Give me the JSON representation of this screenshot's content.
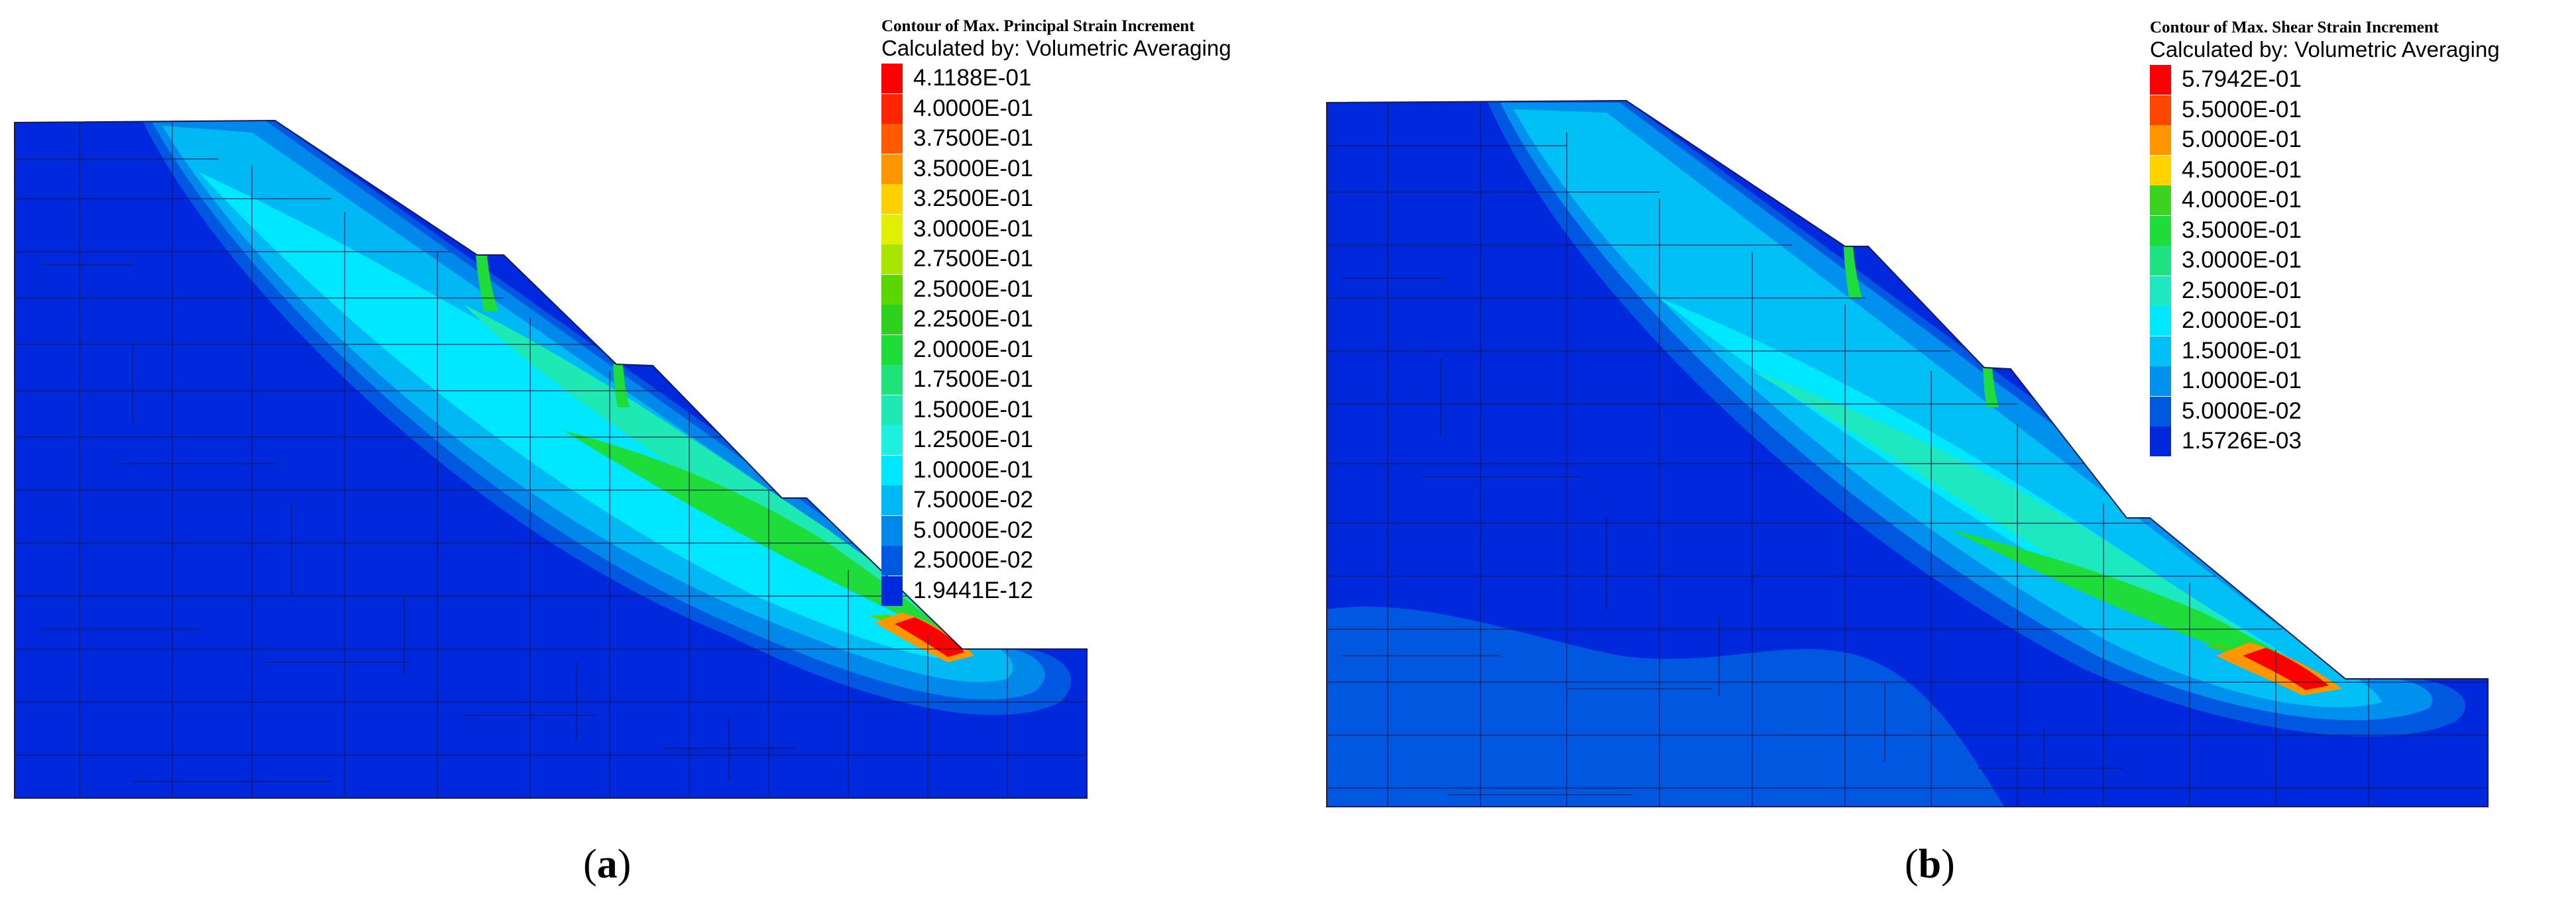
{
  "panel_a": {
    "legend_title": "Contour of Max. Principal Strain Increment",
    "legend_subtitle": "Calculated by: Volumetric Averaging",
    "legend": [
      {
        "label": "4.1188E-01",
        "color": "#ff0000"
      },
      {
        "label": "4.0000E-01",
        "color": "#ff2400"
      },
      {
        "label": "3.7500E-01",
        "color": "#ff5a00"
      },
      {
        "label": "3.5000E-01",
        "color": "#ff9600"
      },
      {
        "label": "3.2500E-01",
        "color": "#ffd000"
      },
      {
        "label": "3.0000E-01",
        "color": "#e0f000"
      },
      {
        "label": "2.7500E-01",
        "color": "#a6e600"
      },
      {
        "label": "2.5000E-01",
        "color": "#5ad600"
      },
      {
        "label": "2.2500E-01",
        "color": "#2ed21c"
      },
      {
        "label": "2.0000E-01",
        "color": "#1edc3a"
      },
      {
        "label": "1.7500E-01",
        "color": "#1ee27a"
      },
      {
        "label": "1.5000E-01",
        "color": "#1ee8b4"
      },
      {
        "label": "1.2500E-01",
        "color": "#1ef0e0"
      },
      {
        "label": "1.0000E-01",
        "color": "#00e8ff"
      },
      {
        "label": "7.5000E-02",
        "color": "#00b8f4"
      },
      {
        "label": "5.0000E-02",
        "color": "#0088ea"
      },
      {
        "label": "2.5000E-02",
        "color": "#0058e0"
      },
      {
        "label": "1.9441E-12",
        "color": "#0028dc"
      }
    ],
    "caption_letter": "a"
  },
  "panel_b": {
    "legend_title": "Contour of Max. Shear Strain Increment",
    "legend_subtitle": "Calculated by: Volumetric Averaging",
    "legend": [
      {
        "label": "5.7942E-01",
        "color": "#ff0000"
      },
      {
        "label": "5.5000E-01",
        "color": "#ff4600"
      },
      {
        "label": "5.0000E-01",
        "color": "#ff9600"
      },
      {
        "label": "4.5000E-01",
        "color": "#ffd200"
      },
      {
        "label": "4.0000E-01",
        "color": "#3cd21e"
      },
      {
        "label": "3.5000E-01",
        "color": "#1edc3a"
      },
      {
        "label": "3.0000E-01",
        "color": "#1ee282"
      },
      {
        "label": "2.5000E-01",
        "color": "#1ee8c0"
      },
      {
        "label": "2.0000E-01",
        "color": "#00e8ff"
      },
      {
        "label": "1.5000E-01",
        "color": "#00c0f6"
      },
      {
        "label": "1.0000E-01",
        "color": "#0090ee"
      },
      {
        "label": "5.0000E-02",
        "color": "#0058e0"
      },
      {
        "label": "1.5726E-03",
        "color": "#0028dc"
      }
    ],
    "caption_letter": "b"
  }
}
